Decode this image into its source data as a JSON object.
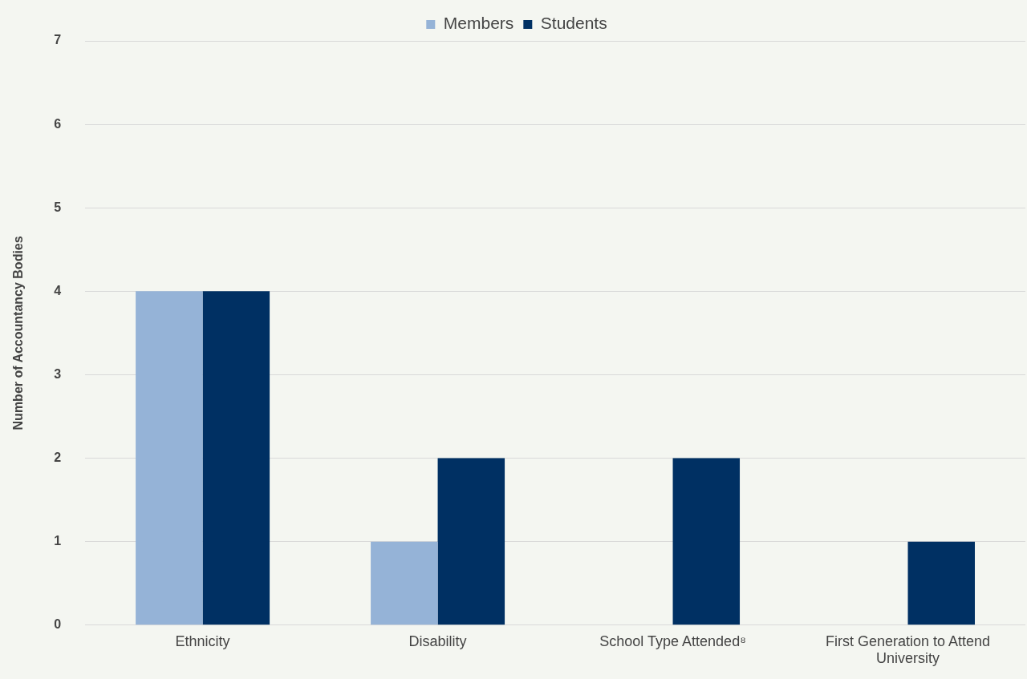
{
  "chart_data": {
    "type": "bar",
    "ylabel": "Number of Accountancy Bodies",
    "categories": [
      "Ethnicity",
      "Disability",
      "School Type Attended⁸",
      "First Generation to Attend University"
    ],
    "series": [
      {
        "name": "Members",
        "color": "#95b3d7",
        "values": [
          4,
          1,
          0,
          0
        ]
      },
      {
        "name": "Students",
        "color": "#003063",
        "values": [
          4,
          2,
          2,
          1
        ]
      }
    ],
    "ylim": [
      0,
      7
    ],
    "yticks": [
      0,
      1,
      2,
      3,
      4,
      5,
      6,
      7
    ],
    "grid": "y",
    "legend": "top"
  }
}
